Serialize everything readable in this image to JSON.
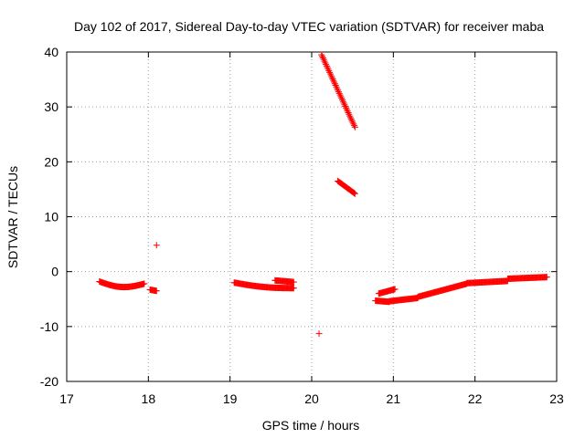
{
  "chart_data": {
    "type": "scatter",
    "title": "Day 102 of 2017, Sidereal Day-to-day VTEC variation (SDTVAR) for receiver maba",
    "xlabel": "GPS time / hours",
    "ylabel": "SDTVAR / TECUs",
    "xlim": [
      17,
      23
    ],
    "ylim": [
      -20,
      40
    ],
    "xticks": [
      17,
      18,
      19,
      20,
      21,
      22,
      23
    ],
    "yticks": [
      -20,
      -10,
      0,
      10,
      20,
      30,
      40
    ],
    "grid": true,
    "marker": "plus",
    "color": "#ff0000",
    "series": [
      {
        "name": "SDTVAR",
        "segments": [
          {
            "x": [
              17.4,
              17.95
            ],
            "y": [
              -1.8,
              -2.2
            ],
            "bump": -0.8
          },
          {
            "x": [
              18.02,
              18.1
            ],
            "y": [
              -3.3,
              -3.5
            ],
            "bump": 0
          },
          {
            "x": [
              19.05,
              19.78
            ],
            "y": [
              -2.0,
              -3.0
            ],
            "bump": -0.3
          },
          {
            "x": [
              19.55,
              19.78
            ],
            "y": [
              -1.6,
              -1.9
            ],
            "bump": 0
          },
          {
            "x": [
              20.12,
              20.53
            ],
            "y": [
              39.5,
              26.3
            ],
            "bump": 0
          },
          {
            "x": [
              20.32,
              20.53
            ],
            "y": [
              16.5,
              14.2
            ],
            "bump": 0
          },
          {
            "x": [
              20.78,
              20.95
            ],
            "y": [
              -5.3,
              -5.5
            ],
            "bump": 0
          },
          {
            "x": [
              20.82,
              21.02
            ],
            "y": [
              -4.0,
              -3.2
            ],
            "bump": 0
          },
          {
            "x": [
              20.95,
              21.3
            ],
            "y": [
              -5.4,
              -4.8
            ],
            "bump": 0
          },
          {
            "x": [
              21.3,
              21.9
            ],
            "y": [
              -4.6,
              -2.2
            ],
            "bump": 0
          },
          {
            "x": [
              21.9,
              22.4
            ],
            "y": [
              -2.1,
              -1.7
            ],
            "bump": 0
          },
          {
            "x": [
              22.4,
              22.88
            ],
            "y": [
              -1.3,
              -1.0
            ],
            "bump": 0
          }
        ],
        "points": [
          {
            "x": 18.1,
            "y": 4.8
          },
          {
            "x": 20.09,
            "y": -11.3
          }
        ]
      }
    ]
  }
}
